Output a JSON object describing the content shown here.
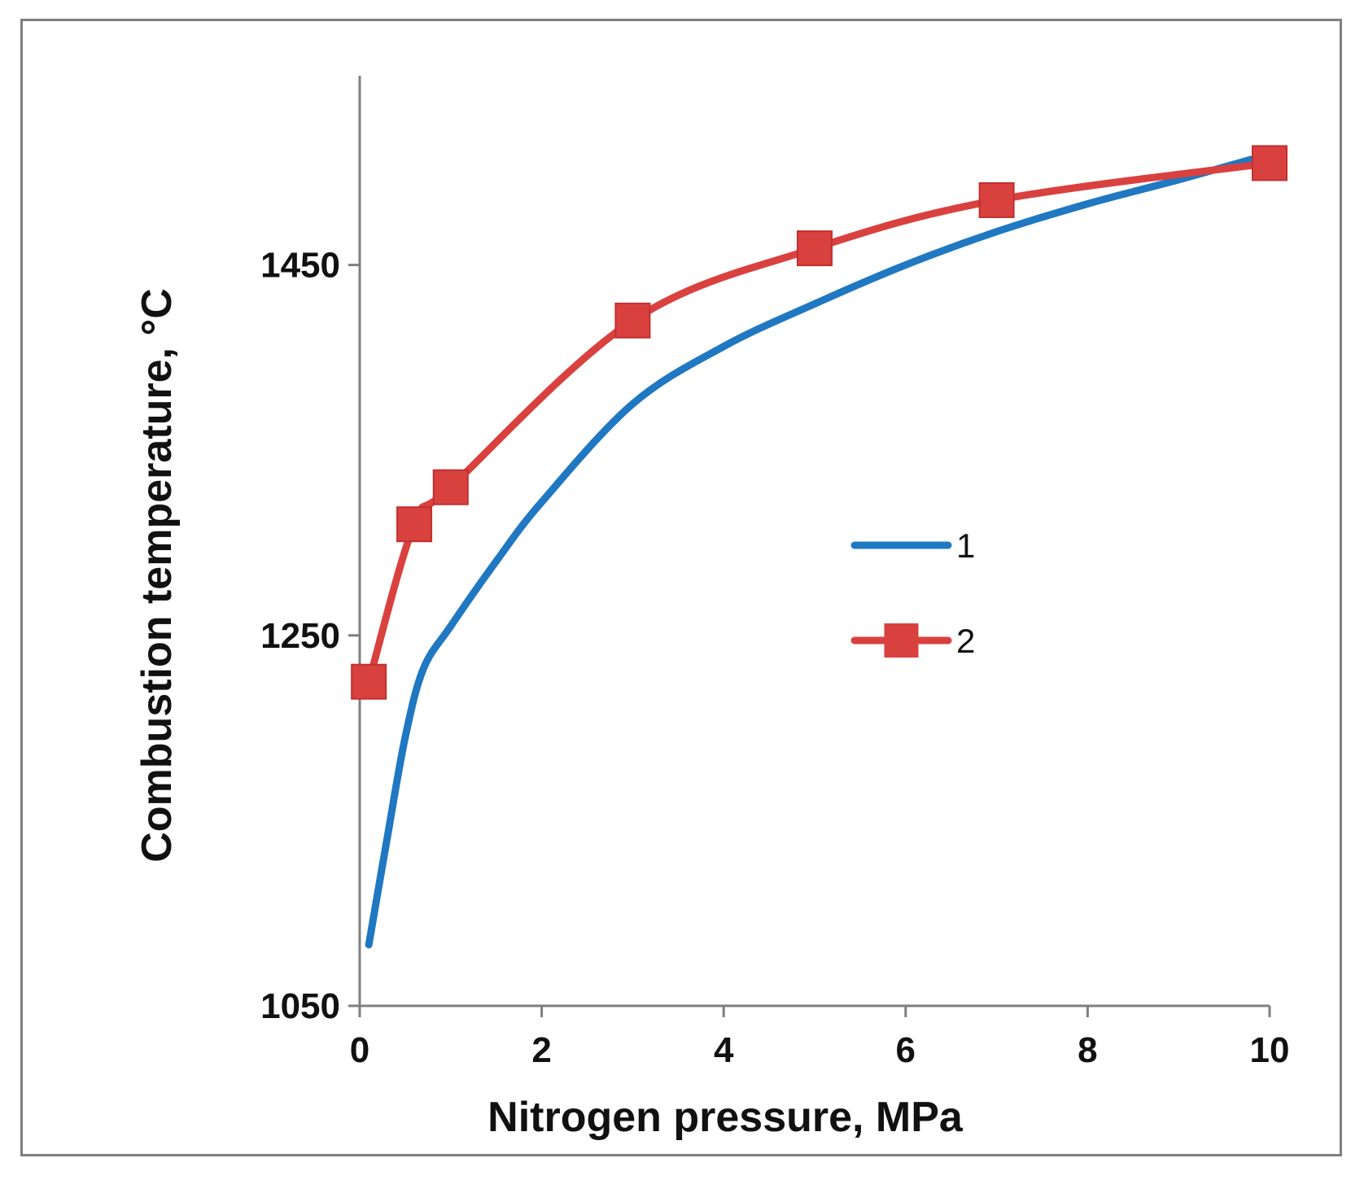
{
  "chart_data": {
    "type": "line",
    "title": "",
    "xlabel": "Nitrogen pressure, MPa",
    "ylabel": "Combustion temperature, °C",
    "xlim": [
      0,
      10
    ],
    "ylim": [
      1050,
      1550
    ],
    "x_ticks": [
      0,
      2,
      4,
      6,
      8,
      10
    ],
    "y_ticks": [
      1050,
      1250,
      1450
    ],
    "grid": false,
    "legend_position": "center-right",
    "series": [
      {
        "name": "1",
        "color": "#1f78c1",
        "marker": "none",
        "x": [
          0.1,
          0.3,
          0.5,
          0.7,
          1.0,
          1.5,
          2.0,
          3.0,
          4.0,
          5.0,
          6.0,
          7.0,
          8.0,
          9.0,
          9.8
        ],
        "y": [
          1083,
          1140,
          1195,
          1232,
          1255,
          1290,
          1322,
          1375,
          1406,
          1429,
          1450,
          1468,
          1483,
          1496,
          1507
        ]
      },
      {
        "name": "2",
        "color": "#d9413f",
        "marker": "square",
        "x": [
          0.1,
          0.6,
          1.0,
          3.0,
          5.0,
          7.0,
          10.0
        ],
        "y": [
          1225,
          1310,
          1330,
          1420,
          1459,
          1485,
          1505
        ]
      }
    ]
  }
}
